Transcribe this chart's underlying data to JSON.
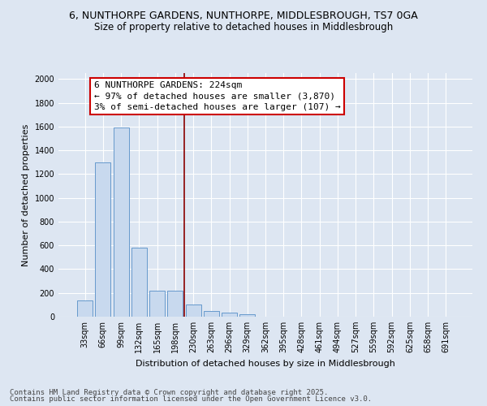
{
  "title_line1": "6, NUNTHORPE GARDENS, NUNTHORPE, MIDDLESBROUGH, TS7 0GA",
  "title_line2": "Size of property relative to detached houses in Middlesbrough",
  "xlabel": "Distribution of detached houses by size in Middlesbrough",
  "ylabel": "Number of detached properties",
  "categories": [
    "33sqm",
    "66sqm",
    "99sqm",
    "132sqm",
    "165sqm",
    "198sqm",
    "230sqm",
    "263sqm",
    "296sqm",
    "329sqm",
    "362sqm",
    "395sqm",
    "428sqm",
    "461sqm",
    "494sqm",
    "527sqm",
    "559sqm",
    "592sqm",
    "625sqm",
    "658sqm",
    "691sqm"
  ],
  "values": [
    140,
    1300,
    1590,
    580,
    220,
    220,
    100,
    50,
    35,
    20,
    0,
    0,
    0,
    0,
    0,
    0,
    0,
    0,
    0,
    0,
    0
  ],
  "bar_color": "#c8d9ee",
  "bar_edge_color": "#6699cc",
  "vline_color": "#8b0000",
  "annotation_text": "6 NUNTHORPE GARDENS: 224sqm\n← 97% of detached houses are smaller (3,870)\n3% of semi-detached houses are larger (107) →",
  "annotation_box_color": "#cc0000",
  "annotation_fill": "#ffffff",
  "ylim": [
    0,
    2050
  ],
  "yticks": [
    0,
    200,
    400,
    600,
    800,
    1000,
    1200,
    1400,
    1600,
    1800,
    2000
  ],
  "background_color": "#dde6f2",
  "grid_color": "#ffffff",
  "footer_line1": "Contains HM Land Registry data © Crown copyright and database right 2025.",
  "footer_line2": "Contains public sector information licensed under the Open Government Licence v3.0.",
  "title_fontsize": 9,
  "subtitle_fontsize": 8.5,
  "axis_label_fontsize": 8,
  "tick_fontsize": 7,
  "annotation_fontsize": 8,
  "footer_fontsize": 6.5
}
